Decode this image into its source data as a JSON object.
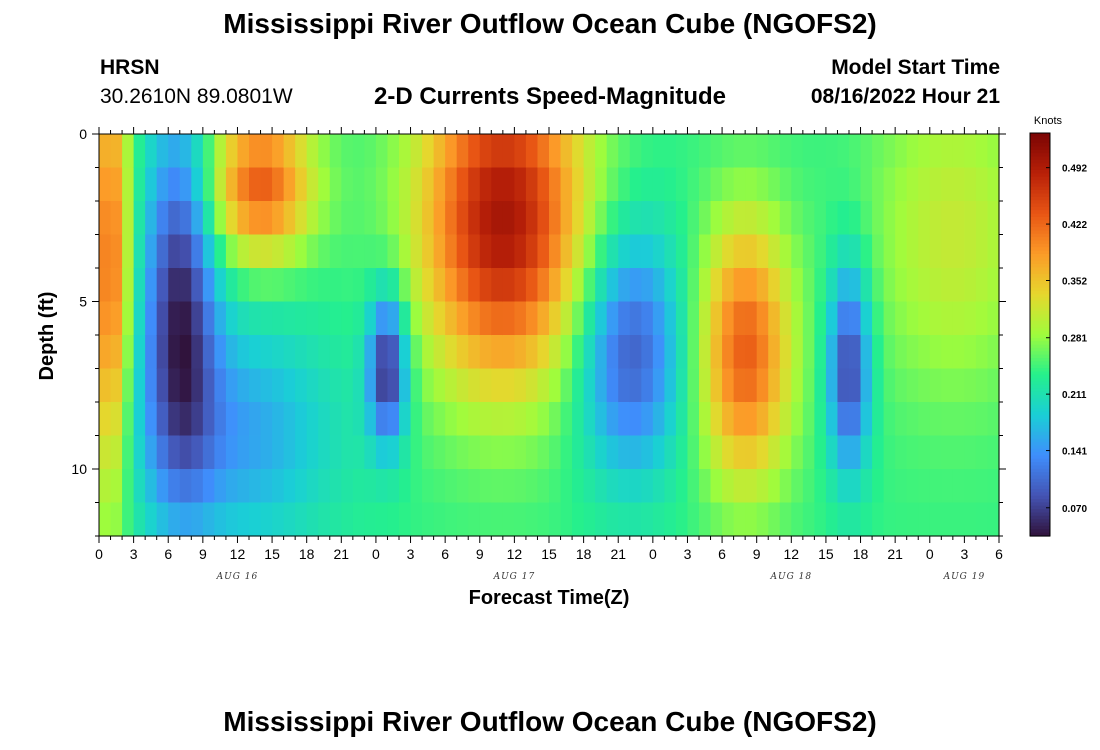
{
  "page": {
    "title_top": "Mississippi River Outflow Ocean Cube (NGOFS2)",
    "title_bottom": "Mississippi River Outflow Ocean Cube (NGOFS2)",
    "station_name": "HRSN",
    "station_coords": "30.2610N  89.0801W",
    "subtitle": "2-D Currents Speed-Magnitude",
    "model_start_label": "Model Start Time",
    "model_start_value": "08/16/2022 Hour 21"
  },
  "chart_data": {
    "type": "heatmap",
    "title": "2-D Currents Speed-Magnitude",
    "xlabel": "Forecast Time(Z)",
    "ylabel": "Depth (ft)",
    "x_range_hours": [
      0,
      78
    ],
    "ylim": [
      0,
      12
    ],
    "y_inverted": true,
    "x_tick_labels": [
      "0",
      "3",
      "6",
      "9",
      "12",
      "15",
      "18",
      "21",
      "0",
      "3",
      "6",
      "9",
      "12",
      "15",
      "18",
      "21",
      "0",
      "3",
      "6",
      "9",
      "12",
      "15",
      "18",
      "21",
      "0",
      "3",
      "6"
    ],
    "y_tick_labels": [
      "0",
      "5",
      "10"
    ],
    "y_tick_values": [
      0,
      5,
      10
    ],
    "date_labels": [
      {
        "text": "AUG 16",
        "hour": 12
      },
      {
        "text": "AUG 17",
        "hour": 36
      },
      {
        "text": "AUG 18",
        "hour": 60
      },
      {
        "text": "AUG 19",
        "hour": 75
      }
    ],
    "colorbar": {
      "title": "Knots",
      "min": 0.035,
      "max": 0.535,
      "tick_labels": [
        "0.070",
        "0.141",
        "0.211",
        "0.281",
        "0.352",
        "0.422",
        "0.492"
      ],
      "tick_values": [
        0.07,
        0.141,
        0.211,
        0.281,
        0.352,
        0.422,
        0.492
      ],
      "colormap": "turbo"
    },
    "grid": false,
    "grid_model": {
      "cells_x": 78,
      "cells_y": 12,
      "notes": "Speed magnitude (knots) per forecast hour and depth layer",
      "features": [
        {
          "t_center": 1,
          "d_center": 4,
          "speed": 0.42,
          "t_sigma": 1.2,
          "d_sigma": 5
        },
        {
          "t_center": 7,
          "d_center": 5,
          "speed": 0.06,
          "t_sigma": 2.2,
          "d_sigma": 4
        },
        {
          "t_center": 14,
          "d_center": 1.5,
          "speed": 0.43,
          "t_sigma": 3.2,
          "d_sigma": 1.6
        },
        {
          "t_center": 12,
          "d_center": 9,
          "speed": 0.15,
          "t_sigma": 6,
          "d_sigma": 2.5
        },
        {
          "t_center": 25,
          "d_center": 7,
          "speed": 0.05,
          "t_sigma": 1.2,
          "d_sigma": 1.6
        },
        {
          "t_center": 35,
          "d_center": 2.5,
          "speed": 0.5,
          "t_sigma": 5,
          "d_sigma": 3.5
        },
        {
          "t_center": 46,
          "d_center": 6.5,
          "speed": 0.09,
          "t_sigma": 3.2,
          "d_sigma": 2.6
        },
        {
          "t_center": 56,
          "d_center": 6.5,
          "speed": 0.43,
          "t_sigma": 2.8,
          "d_sigma": 2.8
        },
        {
          "t_center": 65,
          "d_center": 7,
          "speed": 0.07,
          "t_sigma": 1.3,
          "d_sigma": 2.2
        },
        {
          "t_center": 74,
          "d_center": 3,
          "speed": 0.31,
          "t_sigma": 5,
          "d_sigma": 3.5
        }
      ]
    }
  }
}
